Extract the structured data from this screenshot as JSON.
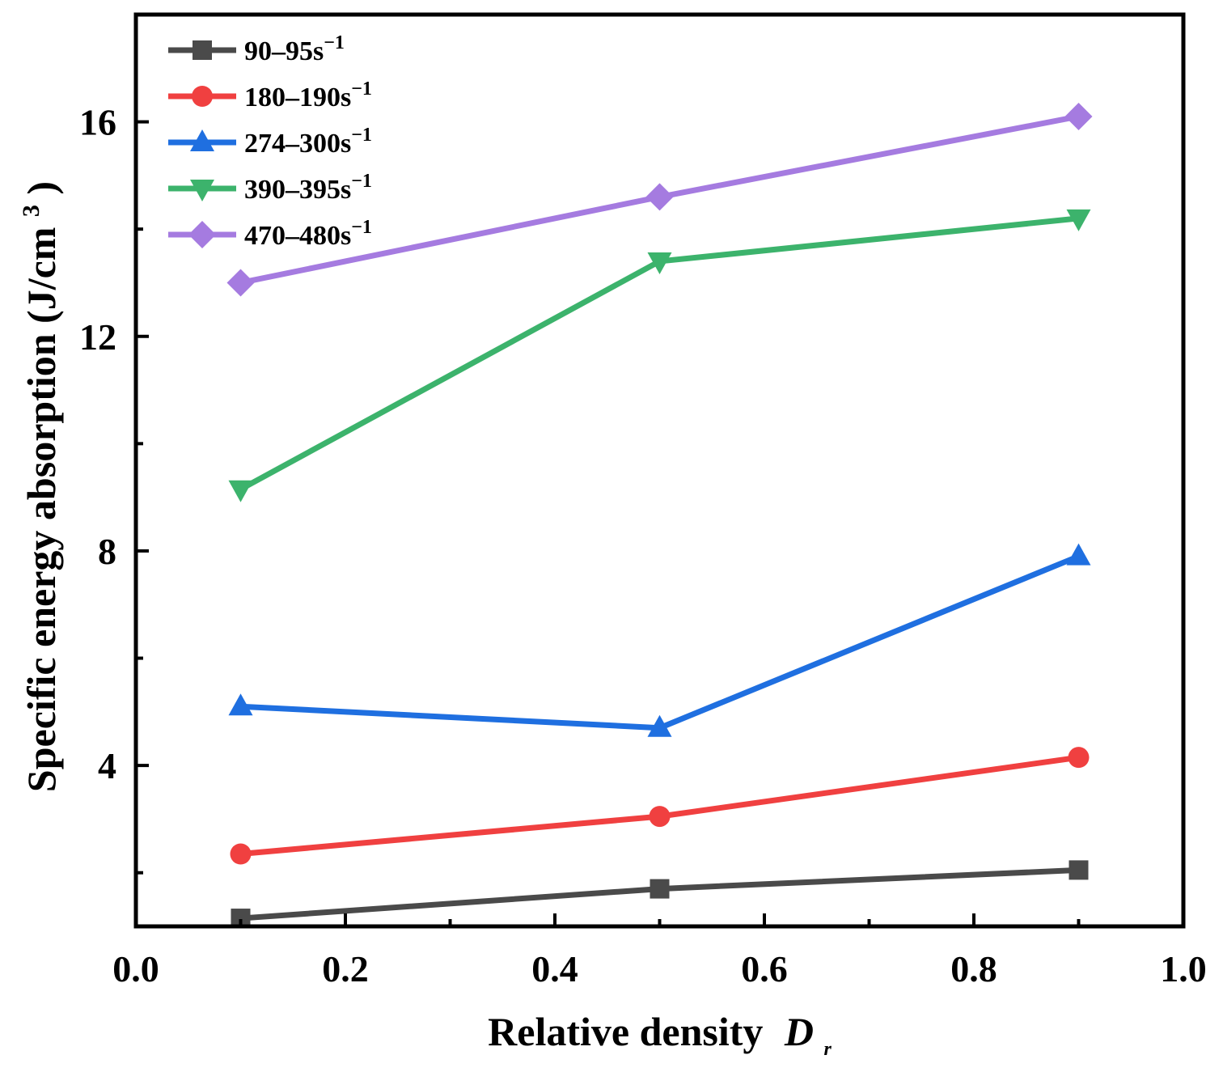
{
  "chart_data": {
    "type": "line",
    "xlabel": "Relative density",
    "xlabel_var": "D",
    "xlabel_sub": "r",
    "ylabel": "Specific energy absorption (J/cm",
    "ylabel_sup": "3",
    "ylabel_close": ")",
    "xlim": [
      0.0,
      1.0
    ],
    "ylim": [
      1.0,
      18.0
    ],
    "x_ticks": [
      0.0,
      0.2,
      0.4,
      0.6,
      0.8,
      1.0
    ],
    "x_tick_labels": [
      "0.0",
      "0.2",
      "0.4",
      "0.6",
      "0.8",
      "1.0"
    ],
    "x_minor_ticks": [
      0.1,
      0.3,
      0.5,
      0.7,
      0.9
    ],
    "y_ticks": [
      4,
      8,
      12,
      16
    ],
    "y_tick_labels": [
      "4",
      "8",
      "12",
      "16"
    ],
    "y_minor_ticks": [
      2,
      6,
      10,
      14
    ],
    "legend_position": "top-left",
    "grid": false,
    "x": [
      0.1,
      0.5,
      0.9
    ],
    "series": [
      {
        "name": "90–95s",
        "sup": "−1",
        "marker": "square",
        "color": "#4a4a4a",
        "values": [
          1.15,
          1.7,
          2.05
        ]
      },
      {
        "name": "180–190s",
        "sup": "−1",
        "marker": "circle",
        "color": "#f04040",
        "values": [
          2.35,
          3.05,
          4.15
        ]
      },
      {
        "name": "274–300s",
        "sup": "−1",
        "marker": "triangle-up",
        "color": "#1f6fe0",
        "values": [
          5.1,
          4.7,
          7.9
        ]
      },
      {
        "name": "390–395s",
        "sup": "−1",
        "marker": "triangle-down",
        "color": "#3cb36c",
        "values": [
          9.15,
          13.4,
          14.2
        ]
      },
      {
        "name": "470–480s",
        "sup": "−1",
        "marker": "diamond",
        "color": "#a57be0",
        "values": [
          13.0,
          14.6,
          16.1
        ]
      }
    ]
  }
}
